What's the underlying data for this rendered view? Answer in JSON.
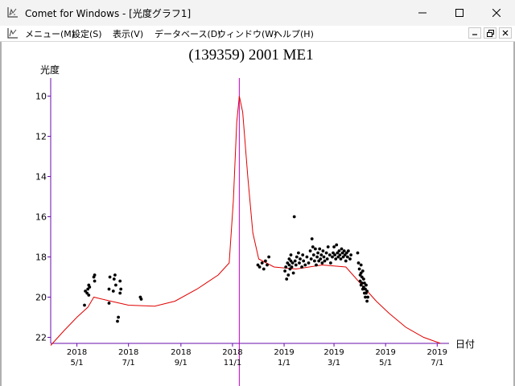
{
  "window": {
    "title": "Comet for Windows - [光度グラフ1]",
    "app_icon": "chart-icon",
    "controls": [
      "minimize-icon",
      "maximize-icon",
      "close-icon"
    ]
  },
  "menu": {
    "items": [
      "メニュー(M)",
      "設定(S)",
      "表示(V)",
      "データベース(D)",
      "ウィンドウ(W)",
      "ヘルプ(H)"
    ],
    "mdi_controls": [
      "mdi-minimize-icon",
      "mdi-restore-icon",
      "mdi-close-icon"
    ]
  },
  "chart_data": {
    "type": "scatter",
    "title": "(139359) 2001 ME1",
    "ylabel": "光度",
    "xlabel": "日付",
    "ylim": [
      22.3,
      9.1
    ],
    "y_inverted": true,
    "xlim": [
      "2018-03-31",
      "2019-07-15"
    ],
    "y_ticks": [
      10,
      12,
      14,
      16,
      18,
      20,
      22
    ],
    "x_ticks": [
      {
        "date": "2018-05-01",
        "year": "2018",
        "md": "5/1"
      },
      {
        "date": "2018-07-01",
        "year": "2018",
        "md": "7/1"
      },
      {
        "date": "2018-09-01",
        "year": "2018",
        "md": "9/1"
      },
      {
        "date": "2018-11-01",
        "year": "2018",
        "md": "11/1"
      },
      {
        "date": "2019-01-01",
        "year": "2019",
        "md": "1/1"
      },
      {
        "date": "2019-03-01",
        "year": "2019",
        "md": "3/1"
      },
      {
        "date": "2019-05-01",
        "year": "2019",
        "md": "5/1"
      },
      {
        "date": "2019-07-01",
        "year": "2019",
        "md": "7/1"
      }
    ],
    "vertical_marker": "2018-11-09",
    "predicted_curve": {
      "color": "#e00000",
      "points": [
        [
          "2018-03-31",
          22.4
        ],
        [
          "2018-04-15",
          21.7
        ],
        [
          "2018-05-01",
          21.0
        ],
        [
          "2018-05-14",
          20.5
        ],
        [
          "2018-05-21",
          20.0
        ],
        [
          "2018-06-10",
          20.2
        ],
        [
          "2018-07-01",
          20.4
        ],
        [
          "2018-08-01",
          20.45
        ],
        [
          "2018-08-25",
          20.2
        ],
        [
          "2018-09-20",
          19.6
        ],
        [
          "2018-10-15",
          18.9
        ],
        [
          "2018-10-28",
          18.3
        ],
        [
          "2018-11-02",
          15.2
        ],
        [
          "2018-11-06",
          11.3
        ],
        [
          "2018-11-09",
          10.0
        ],
        [
          "2018-11-13",
          10.8
        ],
        [
          "2018-11-19",
          14.0
        ],
        [
          "2018-11-25",
          16.8
        ],
        [
          "2018-12-02",
          18.1
        ],
        [
          "2018-12-20",
          18.5
        ],
        [
          "2019-01-15",
          18.6
        ],
        [
          "2019-02-15",
          18.4
        ],
        [
          "2019-03-15",
          18.5
        ],
        [
          "2019-04-05",
          19.5
        ],
        [
          "2019-04-20",
          20.2
        ],
        [
          "2019-05-05",
          20.8
        ],
        [
          "2019-05-25",
          21.5
        ],
        [
          "2019-06-15",
          22.0
        ],
        [
          "2019-07-05",
          22.3
        ]
      ]
    },
    "observations": [
      [
        "2018-05-10",
        20.4
      ],
      [
        "2018-05-11",
        19.7
      ],
      [
        "2018-05-13",
        19.8
      ],
      [
        "2018-05-14",
        19.6
      ],
      [
        "2018-05-15",
        19.4
      ],
      [
        "2018-05-15",
        19.9
      ],
      [
        "2018-05-16",
        19.5
      ],
      [
        "2018-05-21",
        19.0
      ],
      [
        "2018-05-22",
        19.2
      ],
      [
        "2018-05-22",
        18.9
      ],
      [
        "2018-06-08",
        19.6
      ],
      [
        "2018-06-08",
        20.3
      ],
      [
        "2018-06-09",
        19.0
      ],
      [
        "2018-06-13",
        19.7
      ],
      [
        "2018-06-14",
        19.1
      ],
      [
        "2018-06-15",
        18.9
      ],
      [
        "2018-06-16",
        19.4
      ],
      [
        "2018-06-18",
        21.2
      ],
      [
        "2018-06-19",
        21.0
      ],
      [
        "2018-06-21",
        19.2
      ],
      [
        "2018-06-22",
        19.6
      ],
      [
        "2018-06-21",
        19.8
      ],
      [
        "2018-07-15",
        20.0
      ],
      [
        "2018-07-16",
        20.1
      ],
      [
        "2018-12-01",
        18.4
      ],
      [
        "2018-12-03",
        18.5
      ],
      [
        "2018-12-06",
        18.3
      ],
      [
        "2018-12-08",
        18.6
      ],
      [
        "2018-12-10",
        18.2
      ],
      [
        "2018-12-12",
        18.4
      ],
      [
        "2018-12-14",
        18.0
      ],
      [
        "2019-01-02",
        18.7
      ],
      [
        "2019-01-03",
        18.5
      ],
      [
        "2019-01-04",
        19.1
      ],
      [
        "2019-01-05",
        18.3
      ],
      [
        "2019-01-06",
        18.9
      ],
      [
        "2019-01-07",
        18.1
      ],
      [
        "2019-01-07",
        18.4
      ],
      [
        "2019-01-08",
        18.6
      ],
      [
        "2019-01-09",
        18.2
      ],
      [
        "2019-01-09",
        17.9
      ],
      [
        "2019-01-10",
        18.5
      ],
      [
        "2019-01-11",
        18.3
      ],
      [
        "2019-01-12",
        18.8
      ],
      [
        "2019-01-13",
        16.0
      ],
      [
        "2019-01-14",
        18.2
      ],
      [
        "2019-01-15",
        18.4
      ],
      [
        "2019-01-16",
        18.0
      ],
      [
        "2019-01-18",
        17.8
      ],
      [
        "2019-01-19",
        18.3
      ],
      [
        "2019-01-20",
        18.1
      ],
      [
        "2019-01-22",
        18.5
      ],
      [
        "2019-01-23",
        17.9
      ],
      [
        "2019-01-24",
        18.2
      ],
      [
        "2019-01-26",
        18.4
      ],
      [
        "2019-01-28",
        18.0
      ],
      [
        "2019-01-30",
        18.3
      ],
      [
        "2019-02-01",
        17.7
      ],
      [
        "2019-02-02",
        18.1
      ],
      [
        "2019-02-03",
        17.1
      ],
      [
        "2019-02-04",
        17.5
      ],
      [
        "2019-02-05",
        17.9
      ],
      [
        "2019-02-06",
        18.2
      ],
      [
        "2019-02-07",
        17.6
      ],
      [
        "2019-02-08",
        18.4
      ],
      [
        "2019-02-09",
        18.0
      ],
      [
        "2019-02-10",
        17.8
      ],
      [
        "2019-02-11",
        18.2
      ],
      [
        "2019-02-12",
        17.6
      ],
      [
        "2019-02-13",
        18.1
      ],
      [
        "2019-02-14",
        17.9
      ],
      [
        "2019-02-15",
        18.3
      ],
      [
        "2019-02-16",
        17.7
      ],
      [
        "2019-02-17",
        18.0
      ],
      [
        "2019-02-18",
        18.2
      ],
      [
        "2019-02-20",
        17.8
      ],
      [
        "2019-02-21",
        18.1
      ],
      [
        "2019-02-22",
        17.5
      ],
      [
        "2019-02-24",
        17.9
      ],
      [
        "2019-02-25",
        18.3
      ],
      [
        "2019-02-27",
        18.0
      ],
      [
        "2019-02-28",
        17.8
      ],
      [
        "2019-03-01",
        17.5
      ],
      [
        "2019-03-02",
        17.9
      ],
      [
        "2019-03-03",
        18.1
      ],
      [
        "2019-03-04",
        17.4
      ],
      [
        "2019-03-05",
        17.8
      ],
      [
        "2019-03-06",
        18.0
      ],
      [
        "2019-03-07",
        17.7
      ],
      [
        "2019-03-08",
        17.9
      ],
      [
        "2019-03-09",
        18.1
      ],
      [
        "2019-03-10",
        17.6
      ],
      [
        "2019-03-11",
        17.8
      ],
      [
        "2019-03-12",
        18.0
      ],
      [
        "2019-03-13",
        17.7
      ],
      [
        "2019-03-14",
        17.9
      ],
      [
        "2019-03-15",
        18.2
      ],
      [
        "2019-03-16",
        17.8
      ],
      [
        "2019-03-17",
        18.0
      ],
      [
        "2019-03-18",
        17.7
      ],
      [
        "2019-03-20",
        18.1
      ],
      [
        "2019-03-21",
        17.9
      ],
      [
        "2019-03-29",
        17.8
      ],
      [
        "2019-03-30",
        18.3
      ],
      [
        "2019-03-31",
        18.6
      ],
      [
        "2019-04-01",
        18.9
      ],
      [
        "2019-04-01",
        19.2
      ],
      [
        "2019-04-02",
        18.8
      ],
      [
        "2019-04-02",
        19.4
      ],
      [
        "2019-04-03",
        19.0
      ],
      [
        "2019-04-03",
        19.3
      ],
      [
        "2019-04-04",
        18.7
      ],
      [
        "2019-04-04",
        19.6
      ],
      [
        "2019-04-05",
        19.1
      ],
      [
        "2019-04-05",
        19.5
      ],
      [
        "2019-04-06",
        19.8
      ],
      [
        "2019-04-06",
        19.3
      ],
      [
        "2019-04-07",
        19.6
      ],
      [
        "2019-04-07",
        20.0
      ],
      [
        "2019-04-08",
        19.4
      ],
      [
        "2019-04-08",
        19.8
      ],
      [
        "2019-04-09",
        20.2
      ],
      [
        "2019-04-09",
        19.7
      ],
      [
        "2019-04-10",
        20.0
      ],
      [
        "2019-04-02",
        18.4
      ]
    ]
  }
}
